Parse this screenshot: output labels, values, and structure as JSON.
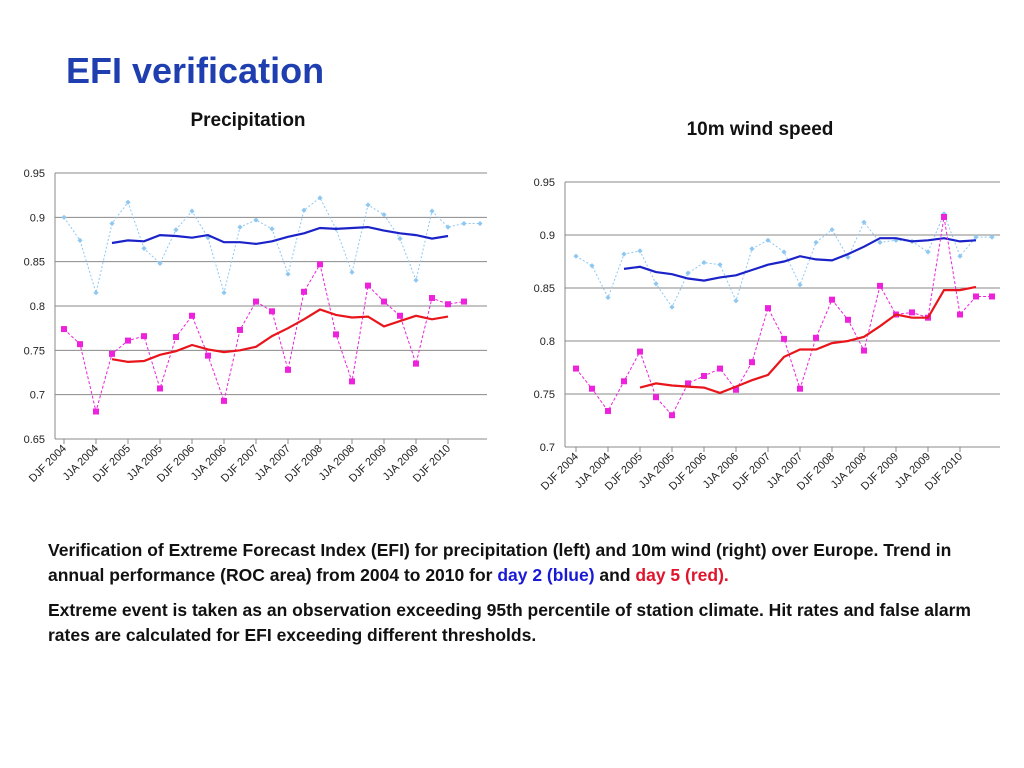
{
  "slide": {
    "title": "EFI verification",
    "caption": {
      "p1_part1": "Verification of Extreme Forecast Index (EFI) for precipitation (left) and 10m wind (right) over Europe. Trend in annual performance (ROC area) from 2004 to 2010 for ",
      "p1_blue": "day 2 (blue)",
      "p1_and": " and ",
      "p1_red": "day 5 (red).",
      "p2": "Extreme event is taken as an observation exceeding 95th percentile of station climate. Hit rates and false alarm rates are calculated for EFI exceeding different thresholds."
    }
  },
  "colors": {
    "title": "#1f3fb0",
    "day2_seasonal": "#8ec8f2",
    "day2_trend": "#1a22c8",
    "day5_seasonal": "#ee22dd",
    "day5_trend": "#e8161c",
    "grid": "#8a8a8a"
  },
  "chart_data": [
    {
      "type": "line",
      "title": "Precipitation",
      "xlabel": "",
      "ylabel": "",
      "ylim": [
        0.65,
        0.95
      ],
      "y_ticks": [
        "0.65",
        "0.7",
        "0.75",
        "0.8",
        "0.85",
        "0.9",
        "0.95"
      ],
      "grid": true,
      "legend": "none",
      "categories": [
        "DJF 2004",
        "JJA 2004",
        "DJF 2005",
        "JJA 2005",
        "DJF 2006",
        "JJA 2006",
        "DJF 2007",
        "JJA 2007",
        "DJF 2008",
        "JJA 2008",
        "DJF 2009",
        "JJA 2009",
        "DJF 2010"
      ],
      "x_range": [
        0,
        26
      ],
      "series": [
        {
          "role": "day2_seasonal",
          "style": "dotted_diamond",
          "x": [
            0,
            1,
            2,
            3,
            4,
            5,
            6,
            7,
            8,
            9,
            10,
            11,
            12,
            13,
            14,
            15,
            16,
            17,
            18,
            19,
            20,
            21,
            22,
            23,
            24,
            25,
            26
          ],
          "values": [
            0.9,
            0.874,
            0.815,
            0.893,
            0.917,
            0.865,
            0.848,
            0.886,
            0.907,
            0.877,
            0.815,
            0.889,
            0.897,
            0.887,
            0.836,
            0.908,
            0.922,
            0.887,
            0.838,
            0.914,
            0.903,
            0.876,
            0.829,
            0.907,
            0.889,
            0.893,
            0.893
          ]
        },
        {
          "role": "day2_trend",
          "style": "solid",
          "x": [
            3,
            4,
            5,
            6,
            7,
            8,
            9,
            10,
            11,
            12,
            13,
            14,
            15,
            16,
            17,
            18,
            19,
            20,
            21,
            22,
            23,
            24
          ],
          "values": [
            0.871,
            0.874,
            0.873,
            0.88,
            0.879,
            0.877,
            0.88,
            0.872,
            0.872,
            0.87,
            0.873,
            0.878,
            0.882,
            0.888,
            0.887,
            0.888,
            0.889,
            0.885,
            0.882,
            0.88,
            0.876,
            0.879
          ]
        },
        {
          "role": "day5_seasonal",
          "style": "dashed_square",
          "x": [
            0,
            1,
            2,
            3,
            4,
            5,
            6,
            7,
            8,
            9,
            10,
            11,
            12,
            13,
            14,
            15,
            16,
            17,
            18,
            19,
            20,
            21,
            22,
            23,
            24,
            25
          ],
          "values": [
            0.774,
            0.757,
            0.681,
            0.746,
            0.761,
            0.766,
            0.707,
            0.765,
            0.789,
            0.744,
            0.693,
            0.773,
            0.805,
            0.794,
            0.728,
            0.816,
            0.847,
            0.768,
            0.715,
            0.823,
            0.805,
            0.789,
            0.735,
            0.809,
            0.802,
            0.805
          ]
        },
        {
          "role": "day5_trend",
          "style": "solid",
          "x": [
            3,
            4,
            5,
            6,
            7,
            8,
            9,
            10,
            11,
            12,
            13,
            14,
            15,
            16,
            17,
            18,
            19,
            20,
            21,
            22,
            23,
            24
          ],
          "values": [
            0.74,
            0.737,
            0.738,
            0.745,
            0.749,
            0.756,
            0.751,
            0.748,
            0.75,
            0.754,
            0.766,
            0.775,
            0.785,
            0.796,
            0.79,
            0.787,
            0.788,
            0.777,
            0.783,
            0.789,
            0.785,
            0.788
          ]
        }
      ]
    },
    {
      "type": "line",
      "title": "10m wind speed",
      "xlabel": "",
      "ylabel": "",
      "ylim": [
        0.7,
        0.95
      ],
      "y_ticks": [
        "0.7",
        "0.75",
        "0.8",
        "0.85",
        "0.9",
        "0.95"
      ],
      "grid": true,
      "legend": "none",
      "categories": [
        "DJF 2004",
        "JJA 2004",
        "DJF 2005",
        "JJA 2005",
        "DJF 2006",
        "JJA 2006",
        "DJF 2007",
        "JJA 2007",
        "DJF 2008",
        "JJA 2008",
        "DJF 2009",
        "JJA 2009",
        "DJF 2010"
      ],
      "x_range": [
        0,
        26
      ],
      "series": [
        {
          "role": "day2_seasonal",
          "style": "dotted_diamond",
          "x": [
            0,
            1,
            2,
            3,
            4,
            5,
            6,
            7,
            8,
            9,
            10,
            11,
            12,
            13,
            14,
            15,
            16,
            17,
            18,
            19,
            20,
            21,
            22,
            23,
            24,
            25,
            26
          ],
          "values": [
            0.88,
            0.871,
            0.841,
            0.882,
            0.885,
            0.854,
            0.832,
            0.864,
            0.874,
            0.872,
            0.838,
            0.887,
            0.895,
            0.884,
            0.853,
            0.893,
            0.905,
            0.879,
            0.912,
            0.893,
            0.895,
            0.894,
            0.884,
            0.92,
            0.88,
            0.898,
            0.898
          ]
        },
        {
          "role": "day2_trend",
          "style": "solid",
          "x": [
            3,
            4,
            5,
            6,
            7,
            8,
            9,
            10,
            11,
            12,
            13,
            14,
            15,
            16,
            17,
            18,
            19,
            20,
            21,
            22,
            23,
            24,
            25
          ],
          "values": [
            0.868,
            0.87,
            0.865,
            0.863,
            0.859,
            0.857,
            0.86,
            0.862,
            0.867,
            0.872,
            0.875,
            0.88,
            0.877,
            0.876,
            0.882,
            0.889,
            0.897,
            0.897,
            0.894,
            0.895,
            0.897,
            0.894,
            0.895
          ]
        },
        {
          "role": "day5_seasonal",
          "style": "dashed_square",
          "x": [
            0,
            1,
            2,
            3,
            4,
            5,
            6,
            7,
            8,
            9,
            10,
            11,
            12,
            13,
            14,
            15,
            16,
            17,
            18,
            19,
            20,
            21,
            22,
            23,
            24,
            25,
            26
          ],
          "values": [
            0.774,
            0.755,
            0.734,
            0.762,
            0.79,
            0.747,
            0.73,
            0.76,
            0.767,
            0.774,
            0.754,
            0.78,
            0.831,
            0.802,
            0.755,
            0.803,
            0.839,
            0.82,
            0.791,
            0.852,
            0.825,
            0.827,
            0.822,
            0.917,
            0.825,
            0.842,
            0.842
          ]
        },
        {
          "role": "day5_trend",
          "style": "solid",
          "x": [
            4,
            5,
            6,
            7,
            8,
            9,
            10,
            11,
            12,
            13,
            14,
            15,
            16,
            17,
            18,
            19,
            20,
            21,
            22,
            23,
            24,
            25
          ],
          "values": [
            0.756,
            0.76,
            0.758,
            0.757,
            0.756,
            0.751,
            0.757,
            0.763,
            0.768,
            0.785,
            0.792,
            0.792,
            0.798,
            0.8,
            0.804,
            0.814,
            0.825,
            0.822,
            0.822,
            0.848,
            0.848,
            0.851
          ]
        }
      ]
    }
  ]
}
